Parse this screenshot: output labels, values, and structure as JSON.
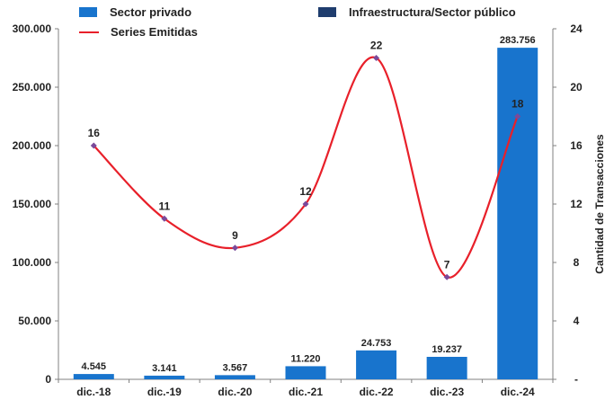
{
  "chart_data": {
    "type": "bar+line",
    "categories": [
      "dic.-18",
      "dic.-19",
      "dic.-20",
      "dic.-21",
      "dic.-22",
      "dic.-23",
      "dic.-24"
    ],
    "series": [
      {
        "name": "Sector privado",
        "type": "bar",
        "axis": "left",
        "color": "#1874cd",
        "values": [
          4545,
          3141,
          3567,
          11220,
          24753,
          19237,
          283756
        ],
        "labels": [
          "4.545",
          "3.141",
          "3.567",
          "11.220",
          "24.753",
          "19.237",
          "283.756"
        ]
      },
      {
        "name": "Infraestructura/Sector público",
        "type": "bar",
        "axis": "left",
        "color": "#1f3d6e",
        "values": [
          0,
          0,
          0,
          0,
          0,
          0,
          0
        ]
      },
      {
        "name": "Series Emitidas",
        "type": "line",
        "axis": "right",
        "color": "#e8202a",
        "smooth": true,
        "values": [
          16,
          11,
          9,
          12,
          22,
          7,
          18
        ],
        "labels": [
          "16",
          "11",
          "9",
          "12",
          "22",
          "7",
          "18"
        ]
      }
    ],
    "y_left": {
      "min": 0,
      "max": 300000,
      "ticks": [
        0,
        50000,
        100000,
        150000,
        200000,
        250000,
        300000
      ],
      "tick_labels": [
        "0",
        "50.000",
        "100.000",
        "150.000",
        "200.000",
        "250.000",
        "300.000"
      ]
    },
    "y_right": {
      "min": 0,
      "max": 24,
      "label": "Cantidad de Transacciones",
      "ticks": [
        0,
        4,
        8,
        12,
        16,
        20,
        24
      ],
      "tick_labels": [
        "-",
        "4",
        "8",
        "12",
        "16",
        "20",
        "24"
      ]
    },
    "grid": false,
    "legend_position": "top"
  }
}
